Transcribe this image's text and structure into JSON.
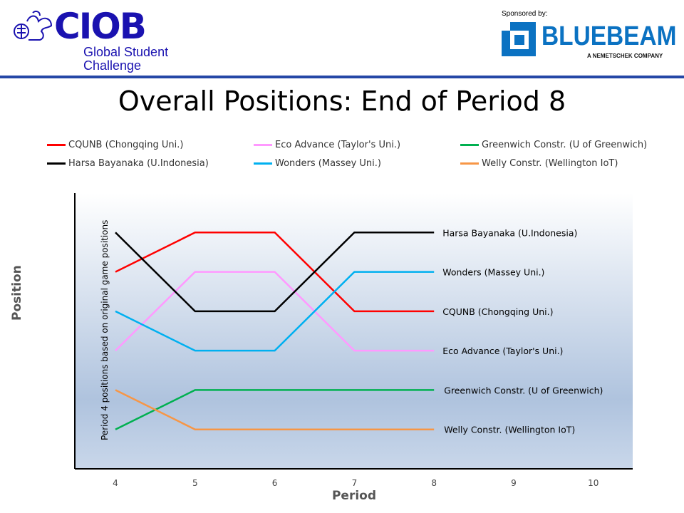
{
  "header": {
    "logo_text": "CIOB",
    "logo_subtitle_1": "Global Student",
    "logo_subtitle_2": "Challenge",
    "sponsored_by": "Sponsored by:",
    "sponsor_logo_text": "BLUEBEAM",
    "sponsor_tagline": "A NEMETSCHEK COMPANY",
    "brand_color": "#1a12b0",
    "sponsor_color": "#0b72c2"
  },
  "chart_data": {
    "type": "line",
    "title": "Overall Positions: End of Period 8",
    "xlabel": "Period",
    "ylabel": "Position",
    "annotation": "Period 4 positions based on original game positions",
    "x_ticks": [
      4,
      5,
      6,
      7,
      8,
      9,
      10
    ],
    "xlim": [
      3.5,
      10.5
    ],
    "ylim": [
      0,
      7
    ],
    "y_reversed": true,
    "grid": false,
    "legend_position": "top",
    "x": [
      4,
      5,
      6,
      7,
      8
    ],
    "series": [
      {
        "name": "CQUNB (Chongqing Uni.)",
        "color": "#ff0000",
        "values": [
          2,
          1,
          1,
          3,
          3
        ]
      },
      {
        "name": "Eco Advance (Taylor's Uni.)",
        "color": "#ff99ff",
        "values": [
          4,
          2,
          2,
          4,
          4
        ]
      },
      {
        "name": "Greenwich Constr. (U of Greenwich)",
        "color": "#00b050",
        "values": [
          6,
          5,
          5,
          5,
          5
        ]
      },
      {
        "name": "Harsa Bayanaka (U.Indonesia)",
        "color": "#000000",
        "values": [
          1,
          3,
          3,
          1,
          1
        ]
      },
      {
        "name": "Wonders (Massey Uni.)",
        "color": "#00b0f0",
        "values": [
          3,
          4,
          4,
          2,
          2
        ]
      },
      {
        "name": "Welly Constr. (Wellington IoT)",
        "color": "#f79646",
        "values": [
          5,
          6,
          6,
          6,
          6
        ]
      }
    ]
  }
}
